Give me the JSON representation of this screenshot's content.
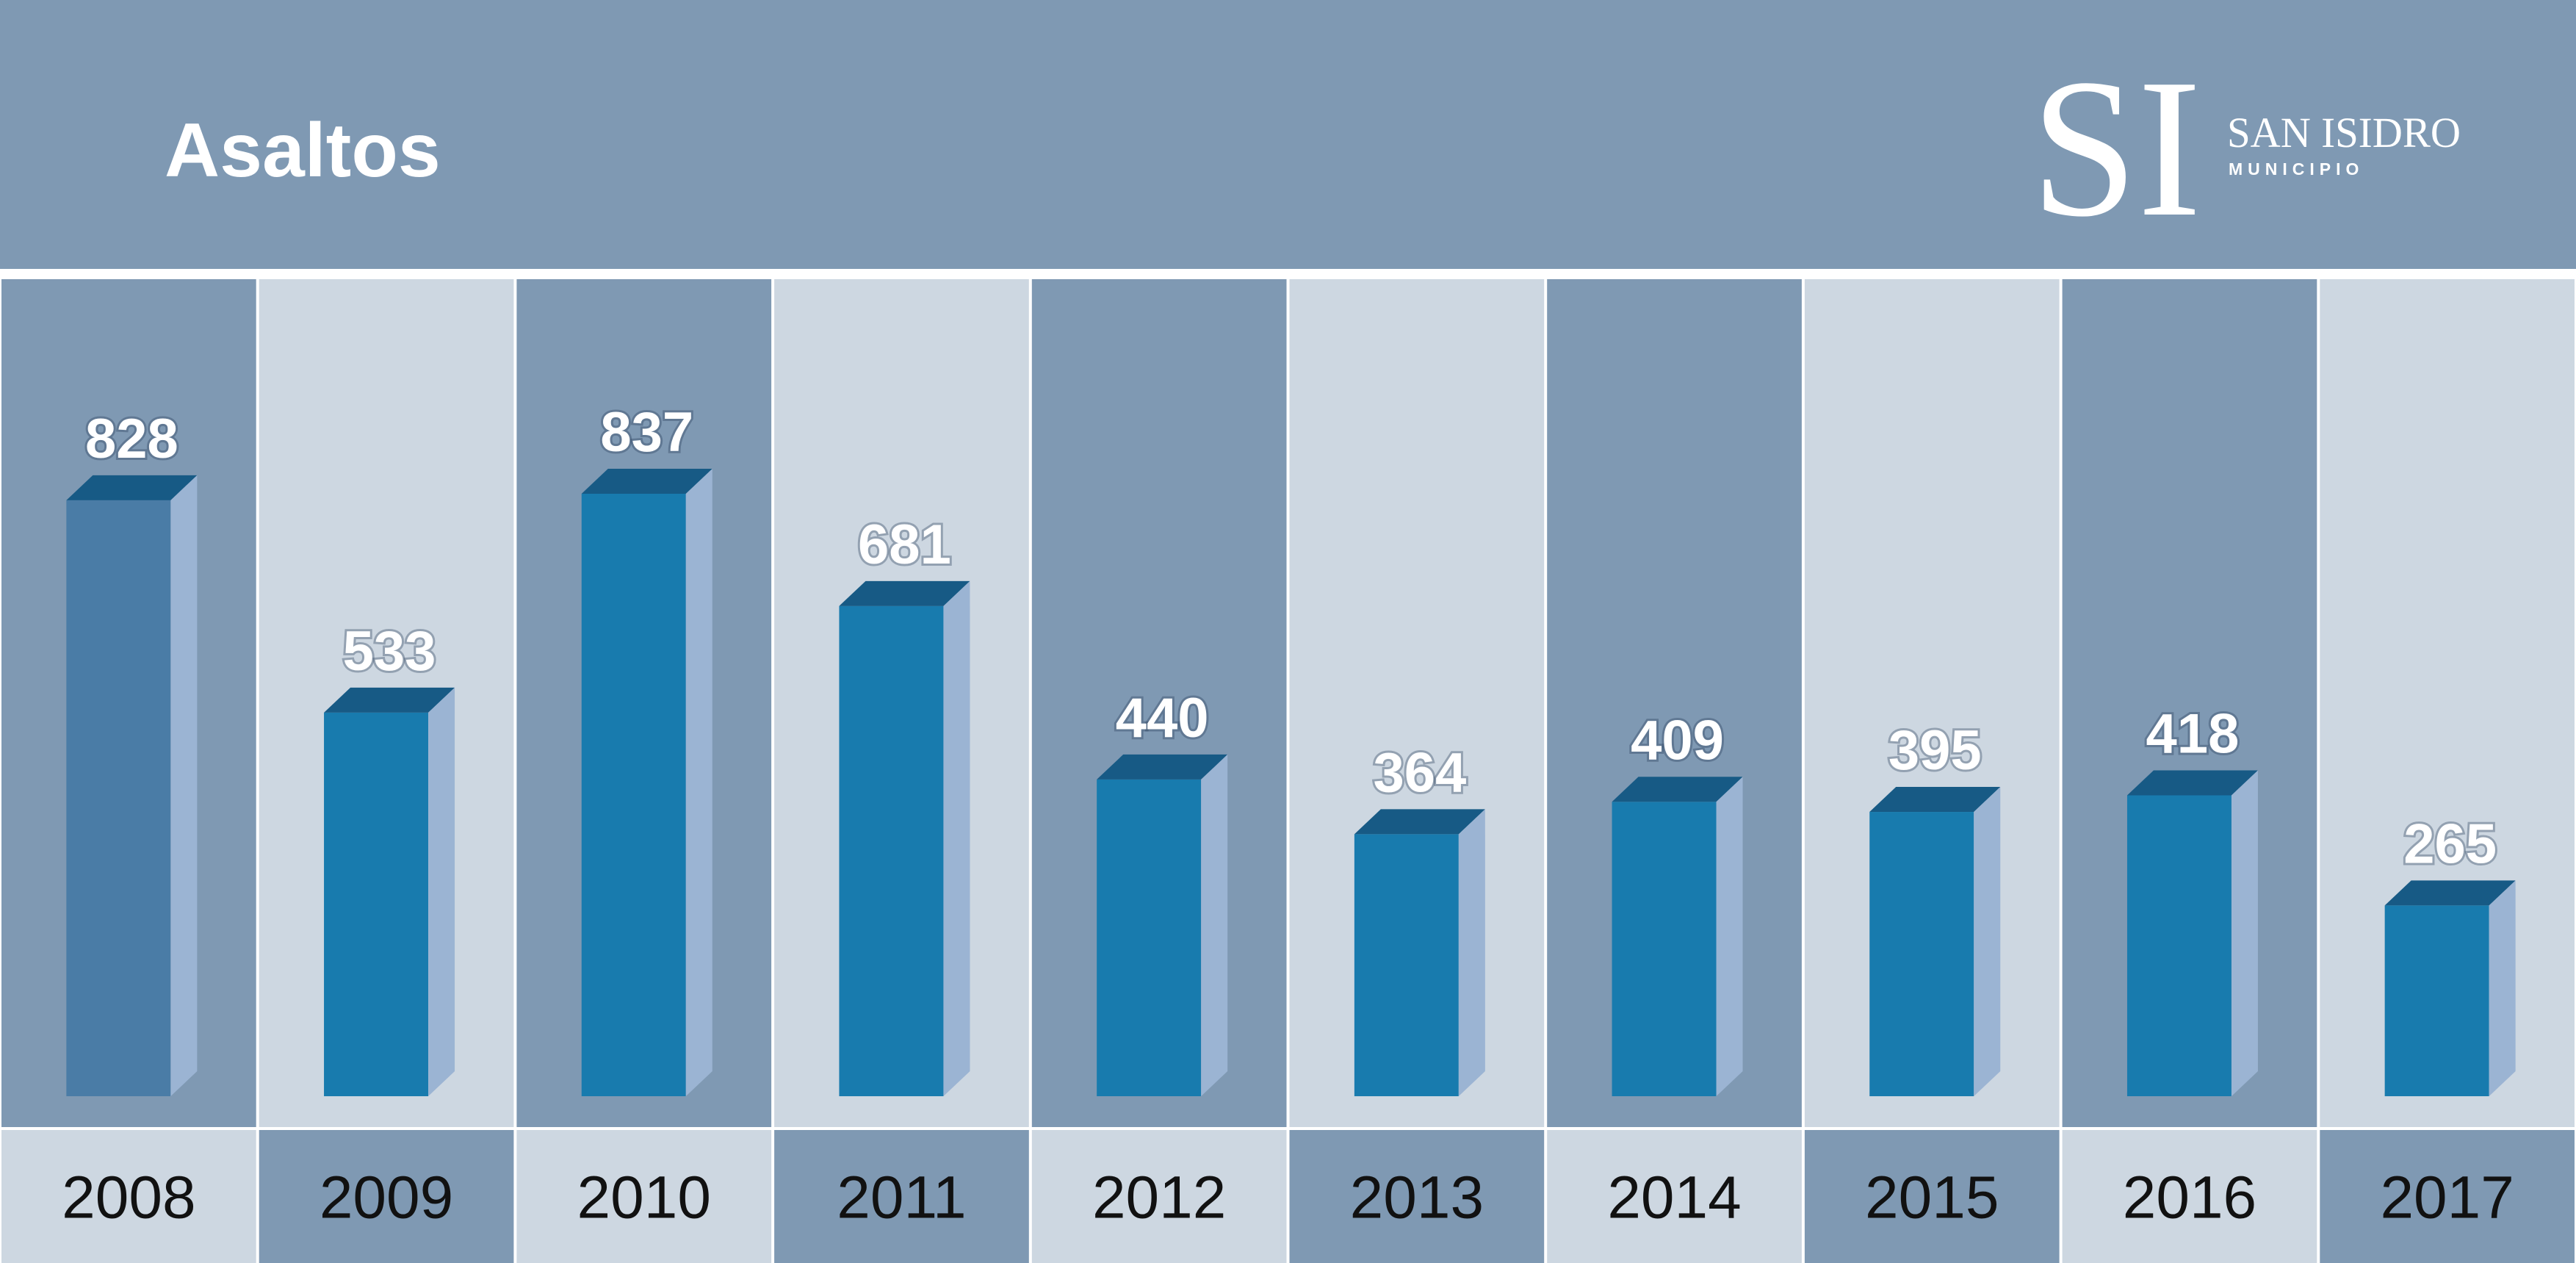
{
  "header": {
    "title": "Asaltos",
    "logo": {
      "monogram": "SI",
      "name": "SAN ISIDRO",
      "subtitle": "MUNICIPIO"
    }
  },
  "colors": {
    "header_bg": "#7f99b3",
    "column_dark": "#7f99b3",
    "column_light": "#cdd7e1",
    "bar_front": "#187bae",
    "bar_front_first": "#4a7ca6",
    "bar_top": "#175a85",
    "bar_side": "#9bb4d3",
    "divider": "#ffffff",
    "value_text": "#ffffff",
    "year_text": "#111111"
  },
  "chart_data": {
    "type": "bar",
    "title": "Asaltos",
    "categories": [
      "2008",
      "2009",
      "2010",
      "2011",
      "2012",
      "2013",
      "2014",
      "2015",
      "2016",
      "2017"
    ],
    "values": [
      828,
      533,
      837,
      681,
      440,
      364,
      409,
      395,
      418,
      265
    ],
    "ylim": [
      0,
      837
    ],
    "grid": false,
    "legend": "none"
  }
}
